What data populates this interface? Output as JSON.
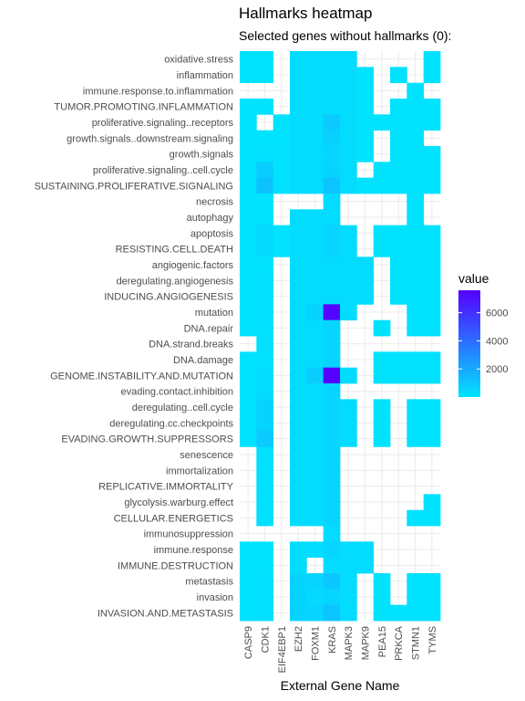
{
  "title": "Hallmarks heatmap",
  "subtitle": "Selected genes without hallmarks (0):",
  "chart_data": {
    "type": "heatmap",
    "title": "Hallmarks heatmap",
    "subtitle": "Selected genes without hallmarks (0):",
    "xlabel": "External Gene Name",
    "ylabel": "",
    "legend_title": "value",
    "legend_ticks": [
      2000,
      4000,
      6000
    ],
    "color_range": [
      0,
      7600
    ],
    "color_low": "#00E5FF",
    "color_high": "#5500FF",
    "grid": true,
    "legend_placement": "right",
    "x": [
      "CASP9",
      "CDK1",
      "EIF4EBP1",
      "EZH2",
      "FOXM1",
      "KRAS",
      "MAPK3",
      "MAPK9",
      "PEA15",
      "PRKCA",
      "STMN1",
      "TYMS"
    ],
    "y": [
      "oxidative.stress",
      "inflammation",
      "immune.response.to.inflammation",
      "TUMOR.PROMOTING.INFLAMMATION",
      "proliferative.signaling..receptors",
      "growth.signals..downstream.signaling",
      "growth.signals",
      "proliferative.signaling..cell.cycle",
      "SUSTAINING.PROLIFERATIVE.SIGNALING",
      "necrosis",
      "autophagy",
      "apoptosis",
      "RESISTING.CELL.DEATH",
      "angiogenic.factors",
      "deregulating.angiogenesis",
      "INDUCING.ANGIOGENESIS",
      "mutation",
      "DNA.repair",
      "DNA.strand.breaks",
      "DNA.damage",
      "GENOME.INSTABILITY.AND.MUTATION",
      "evading.contact.inhibition",
      "deregulating..cell.cycle",
      "deregulating.cc.checkpoints",
      "EVADING.GROWTH.SUPPRESSORS",
      "senescence",
      "immortalization",
      "REPLICATIVE.IMMORTALITY",
      "glycolysis.warburg.effect",
      "CELLULAR.ENERGETICS",
      "immunosuppression",
      "immune.response",
      "IMMUNE.DESTRUCTION",
      "metastasis",
      "invasion",
      "INVASION.AND.METASTASIS"
    ],
    "values": [
      [
        100,
        100,
        null,
        300,
        300,
        300,
        300,
        null,
        null,
        null,
        null,
        100
      ],
      [
        100,
        100,
        null,
        300,
        300,
        300,
        300,
        100,
        null,
        100,
        null,
        100
      ],
      [
        null,
        null,
        null,
        300,
        300,
        300,
        300,
        100,
        null,
        null,
        100,
        null
      ],
      [
        100,
        100,
        null,
        300,
        300,
        300,
        300,
        100,
        null,
        100,
        100,
        100
      ],
      [
        100,
        null,
        100,
        300,
        300,
        900,
        300,
        100,
        100,
        100,
        100,
        100
      ],
      [
        100,
        100,
        100,
        300,
        300,
        700,
        300,
        100,
        null,
        100,
        100,
        null
      ],
      [
        100,
        200,
        100,
        300,
        300,
        500,
        300,
        100,
        null,
        100,
        100,
        100
      ],
      [
        100,
        800,
        100,
        300,
        300,
        600,
        300,
        null,
        100,
        100,
        100,
        100
      ],
      [
        100,
        1200,
        100,
        300,
        300,
        1100,
        300,
        100,
        100,
        100,
        100,
        100
      ],
      [
        100,
        100,
        null,
        null,
        null,
        300,
        null,
        null,
        null,
        null,
        100,
        null
      ],
      [
        100,
        100,
        null,
        300,
        300,
        300,
        null,
        null,
        null,
        null,
        100,
        null
      ],
      [
        100,
        400,
        100,
        300,
        300,
        500,
        300,
        null,
        100,
        100,
        100,
        100
      ],
      [
        100,
        400,
        100,
        300,
        300,
        500,
        300,
        null,
        100,
        100,
        100,
        100
      ],
      [
        100,
        100,
        null,
        300,
        300,
        300,
        300,
        300,
        null,
        100,
        100,
        100
      ],
      [
        100,
        200,
        null,
        300,
        300,
        300,
        300,
        300,
        null,
        100,
        100,
        100
      ],
      [
        100,
        200,
        null,
        300,
        300,
        300,
        300,
        300,
        null,
        100,
        100,
        100
      ],
      [
        100,
        200,
        null,
        300,
        600,
        7400,
        300,
        null,
        null,
        null,
        100,
        100
      ],
      [
        100,
        200,
        null,
        300,
        300,
        500,
        null,
        null,
        100,
        null,
        100,
        100
      ],
      [
        null,
        200,
        null,
        300,
        300,
        500,
        null,
        null,
        null,
        null,
        null,
        null
      ],
      [
        100,
        200,
        null,
        300,
        300,
        500,
        null,
        null,
        100,
        100,
        100,
        100
      ],
      [
        100,
        300,
        null,
        300,
        800,
        7600,
        300,
        null,
        100,
        100,
        200,
        100
      ],
      [
        100,
        300,
        null,
        300,
        300,
        500,
        null,
        null,
        null,
        null,
        null,
        null
      ],
      [
        100,
        600,
        null,
        300,
        300,
        500,
        300,
        null,
        100,
        null,
        100,
        100
      ],
      [
        100,
        600,
        null,
        300,
        300,
        500,
        300,
        null,
        100,
        null,
        100,
        100
      ],
      [
        100,
        900,
        null,
        300,
        300,
        500,
        300,
        null,
        100,
        null,
        100,
        100
      ],
      [
        null,
        200,
        null,
        300,
        300,
        500,
        null,
        null,
        null,
        null,
        null,
        null
      ],
      [
        null,
        200,
        null,
        300,
        300,
        500,
        null,
        null,
        null,
        null,
        null,
        null
      ],
      [
        null,
        200,
        null,
        300,
        300,
        500,
        null,
        null,
        null,
        null,
        null,
        null
      ],
      [
        null,
        200,
        null,
        300,
        300,
        500,
        null,
        null,
        null,
        null,
        null,
        100
      ],
      [
        null,
        200,
        null,
        300,
        300,
        500,
        null,
        null,
        null,
        null,
        100,
        100
      ],
      [
        null,
        null,
        null,
        null,
        null,
        300,
        null,
        null,
        null,
        null,
        null,
        null
      ],
      [
        100,
        100,
        null,
        300,
        300,
        500,
        300,
        300,
        null,
        null,
        null,
        null
      ],
      [
        100,
        100,
        null,
        300,
        null,
        300,
        300,
        300,
        null,
        null,
        null,
        null
      ],
      [
        100,
        200,
        null,
        600,
        500,
        1000,
        300,
        null,
        100,
        null,
        100,
        100
      ],
      [
        100,
        200,
        null,
        600,
        400,
        500,
        300,
        null,
        100,
        null,
        100,
        100
      ],
      [
        100,
        200,
        null,
        600,
        500,
        1100,
        300,
        null,
        100,
        100,
        100,
        100
      ]
    ]
  }
}
